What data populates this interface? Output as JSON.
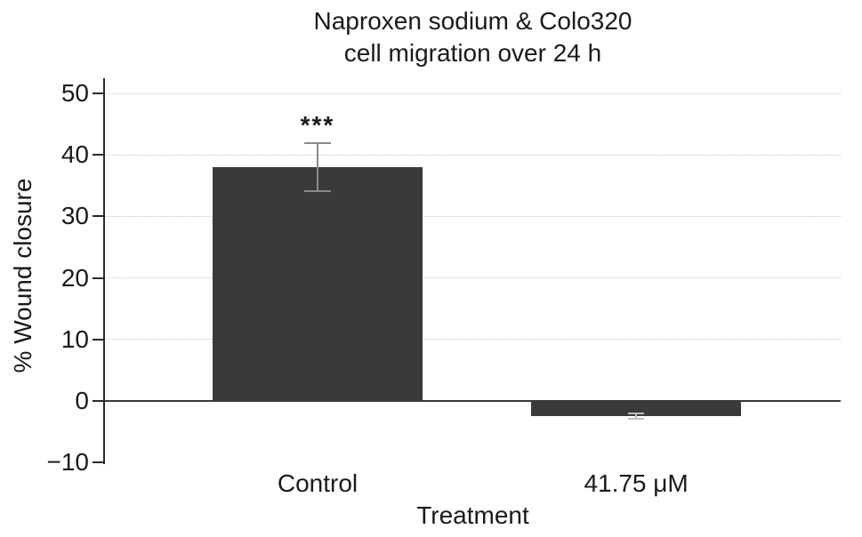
{
  "chart_data": {
    "type": "bar",
    "title_line1": "Naproxen sodium & Colo320",
    "title_line2": "cell migration over 24 h",
    "xlabel": "Treatment",
    "ylabel": "% Wound closure",
    "categories": [
      "Control",
      "41.75 μM"
    ],
    "values": [
      38,
      -2.5
    ],
    "errors": [
      3.9,
      0.4
    ],
    "significance": [
      "***",
      ""
    ],
    "ylim": [
      -10,
      50
    ],
    "yticks": [
      50,
      40,
      30,
      20,
      10,
      0,
      -10
    ],
    "ytick_labels": [
      "50",
      "40",
      "30",
      "20",
      "10",
      "0",
      "−10"
    ],
    "gridline_ticks": [
      50,
      40,
      30,
      20,
      10
    ],
    "bar_color": "#3a3a3a",
    "error_colors": [
      "#8a8a8a",
      "#bdbdbd"
    ],
    "grid": "on",
    "legend": "none"
  }
}
